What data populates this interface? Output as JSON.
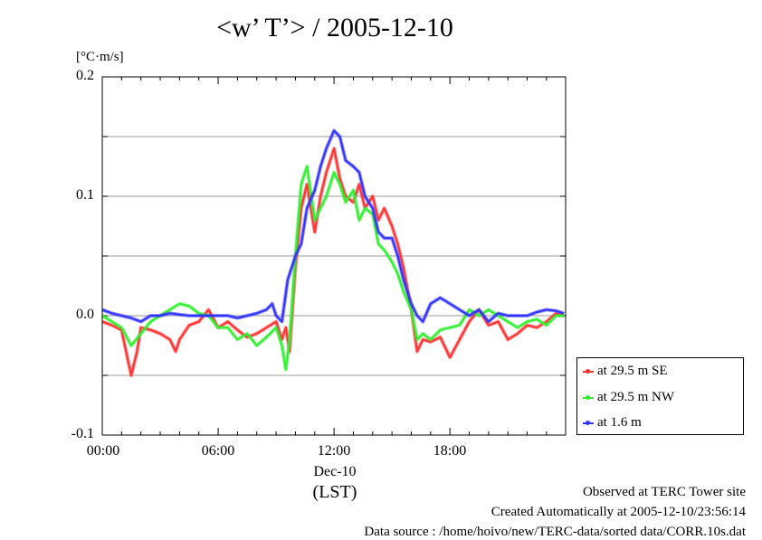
{
  "chart_data": {
    "type": "line",
    "title": "<w’ T’> / 2005-12-10",
    "unit_label": "[°C·m/s]",
    "ylim": [
      -0.1,
      0.2
    ],
    "xlim": [
      0,
      23.99
    ],
    "y_ticks": [
      "0.2",
      "0.1",
      "0.0",
      "-0.1"
    ],
    "x_ticks": [
      {
        "value": 0,
        "label": "00:00"
      },
      {
        "value": 6,
        "label": "06:00"
      },
      {
        "value": 12,
        "label": "12:00"
      },
      {
        "value": 18,
        "label": "18:00"
      }
    ],
    "x_date_label": "Dec-10",
    "x_tz_label": "(LST)",
    "grid": true,
    "legend_position": "bottom-right outside",
    "series": [
      {
        "name": "at 29.5 m SE",
        "color": "#ff3333",
        "x": [
          0,
          0.5,
          1,
          1.3,
          1.5,
          1.8,
          2,
          2.5,
          3,
          3.5,
          3.8,
          4,
          4.5,
          5,
          5.5,
          6,
          6.5,
          7,
          7.5,
          8,
          8.5,
          9,
          9.3,
          9.5,
          9.7,
          10,
          10.3,
          10.6,
          11,
          11.3,
          11.6,
          12,
          12.3,
          12.6,
          13,
          13.3,
          13.6,
          14,
          14.3,
          14.6,
          15,
          15.3,
          15.6,
          16,
          16.3,
          16.6,
          17,
          17.5,
          18,
          18.5,
          19,
          19.5,
          20,
          20.5,
          21,
          21.5,
          22,
          22.5,
          23,
          23.5,
          23.9
        ],
        "values": [
          -0.005,
          -0.008,
          -0.012,
          -0.035,
          -0.05,
          -0.03,
          -0.01,
          -0.012,
          -0.015,
          -0.02,
          -0.03,
          -0.02,
          -0.008,
          -0.005,
          0.005,
          -0.01,
          -0.005,
          -0.012,
          -0.018,
          -0.015,
          -0.01,
          -0.005,
          -0.02,
          -0.01,
          -0.03,
          0.04,
          0.09,
          0.11,
          0.07,
          0.1,
          0.12,
          0.14,
          0.115,
          0.1,
          0.095,
          0.11,
          0.09,
          0.1,
          0.08,
          0.09,
          0.075,
          0.06,
          0.04,
          0.005,
          -0.03,
          -0.02,
          -0.022,
          -0.018,
          -0.035,
          -0.02,
          -0.005,
          0.005,
          -0.008,
          -0.005,
          -0.02,
          -0.015,
          -0.008,
          -0.01,
          -0.005,
          0.002,
          0.0
        ]
      },
      {
        "name": "at 29.5 m NW",
        "color": "#33ee33",
        "x": [
          0,
          0.5,
          1,
          1.5,
          2,
          2.5,
          3,
          3.5,
          4,
          4.5,
          5,
          5.5,
          6,
          6.5,
          7,
          7.5,
          8,
          8.5,
          9,
          9.3,
          9.5,
          9.7,
          10,
          10.3,
          10.6,
          11,
          11.3,
          11.6,
          12,
          12.3,
          12.6,
          13,
          13.3,
          13.6,
          14,
          14.3,
          14.6,
          15,
          15.3,
          15.6,
          16,
          16.3,
          16.6,
          17,
          17.5,
          18,
          18.5,
          19,
          19.5,
          20,
          20.5,
          21,
          21.5,
          22,
          22.5,
          23,
          23.5,
          23.9
        ],
        "values": [
          0.0,
          -0.005,
          -0.01,
          -0.025,
          -0.015,
          -0.005,
          0.0,
          0.005,
          0.01,
          0.008,
          0.002,
          0.0,
          -0.01,
          -0.01,
          -0.02,
          -0.015,
          -0.025,
          -0.018,
          -0.01,
          -0.025,
          -0.045,
          -0.02,
          0.05,
          0.11,
          0.125,
          0.08,
          0.09,
          0.1,
          0.12,
          0.11,
          0.095,
          0.105,
          0.08,
          0.09,
          0.085,
          0.06,
          0.055,
          0.045,
          0.035,
          0.02,
          0.005,
          -0.02,
          -0.015,
          -0.02,
          -0.012,
          -0.01,
          -0.008,
          0.005,
          0.0,
          0.005,
          0.0,
          -0.005,
          -0.01,
          -0.005,
          -0.003,
          -0.008,
          0.0,
          0.0
        ]
      },
      {
        "name": "at 1.6 m",
        "color": "#3333ff",
        "x": [
          0,
          0.5,
          1,
          1.5,
          2,
          2.5,
          3,
          3.5,
          4,
          4.5,
          5,
          5.5,
          6,
          6.5,
          7,
          7.5,
          8,
          8.5,
          8.8,
          9,
          9.3,
          9.6,
          10,
          10.3,
          10.6,
          11,
          11.3,
          11.6,
          12,
          12.3,
          12.6,
          13,
          13.3,
          13.6,
          14,
          14.3,
          14.6,
          15,
          15.3,
          15.6,
          16,
          16.3,
          16.6,
          17,
          17.5,
          18,
          18.5,
          19,
          19.5,
          20,
          20.5,
          21,
          21.5,
          22,
          22.5,
          23,
          23.5,
          23.9
        ],
        "values": [
          0.005,
          0.002,
          0.0,
          -0.002,
          -0.005,
          0.0,
          0.0,
          0.002,
          0.001,
          0.0,
          0.0,
          0.0,
          0.0,
          0.0,
          -0.002,
          0.0,
          0.002,
          0.005,
          0.01,
          0.0,
          -0.005,
          0.03,
          0.05,
          0.06,
          0.09,
          0.105,
          0.125,
          0.14,
          0.155,
          0.15,
          0.13,
          0.125,
          0.12,
          0.1,
          0.09,
          0.07,
          0.065,
          0.065,
          0.05,
          0.03,
          0.01,
          0.0,
          -0.005,
          0.01,
          0.015,
          0.01,
          0.005,
          0.0,
          0.005,
          -0.005,
          0.002,
          0.0,
          0.0,
          0.0,
          0.003,
          0.005,
          0.004,
          0.002
        ]
      }
    ]
  },
  "footer": {
    "line1": "Observed at TERC Tower site",
    "line2": "Created Automatically at 2005-12-10/23:56:14",
    "line3": "Data source : /home/hoivo/new/TERC-data/sorted  data/CORR.10s.dat"
  }
}
